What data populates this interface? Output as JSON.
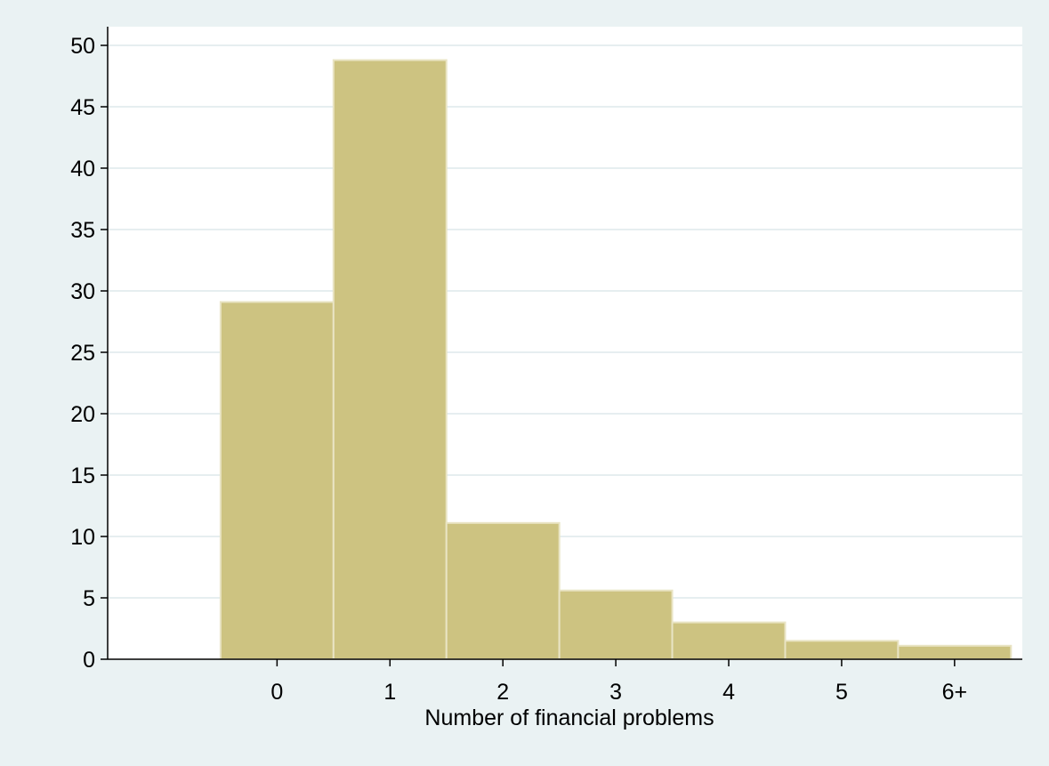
{
  "chart_data": {
    "type": "bar",
    "categories": [
      "0",
      "1",
      "2",
      "3",
      "4",
      "5",
      "6+"
    ],
    "values": [
      29.1,
      48.8,
      11.1,
      5.6,
      3.0,
      1.5,
      1.1
    ],
    "title": "",
    "xlabel": "Number of financial problems",
    "ylabel": "",
    "ylim": [
      0,
      50
    ],
    "yticks": [
      0,
      5,
      10,
      15,
      20,
      25,
      30,
      35,
      40,
      45,
      50
    ],
    "xlim": [
      -1.5,
      6.6
    ],
    "grid": "horizontal",
    "legend": "none"
  },
  "colors": {
    "outer_background": "#eaf2f3",
    "plot_background": "#ffffff",
    "bar_fill": "#cdc381",
    "bar_stroke": "#e9e4c4",
    "gridline": "#e6eef0"
  }
}
